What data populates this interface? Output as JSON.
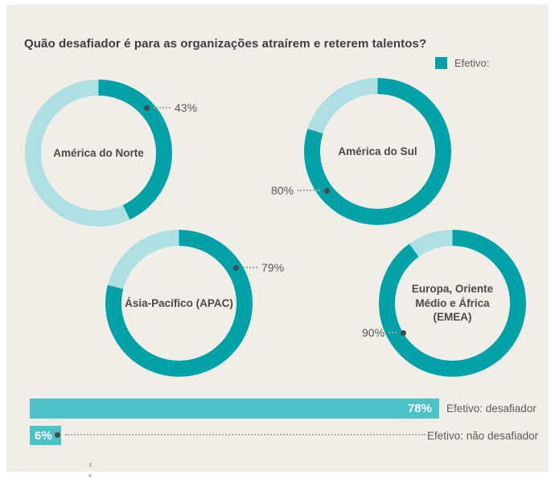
{
  "colors": {
    "active": "#00a2a8",
    "remainder": "#aedfe3",
    "bar": "#4cc3c8",
    "background": "#f1eee7",
    "title_text": "#3e3e3e",
    "label_text": "#4a4a4a"
  },
  "chart_data": [
    {
      "type": "pie",
      "subtype": "donut-grid",
      "title": "Quão desafiador é para as organizações atraírem e reterem talentos?",
      "legend": [
        "Efetivo:"
      ],
      "legend_position": "top-right",
      "donuts": [
        {
          "category": "América do Norte",
          "value": 43,
          "remainder": 57,
          "label": "43%"
        },
        {
          "category": "América do Sul",
          "value": 80,
          "remainder": 20,
          "label": "80%"
        },
        {
          "category": "Ásia-Pacífico (APAC)",
          "value": 79,
          "remainder": 21,
          "label": "79%"
        },
        {
          "category": "Europa, Oriente Médio e África (EMEA)",
          "value": 90,
          "remainder": 10,
          "label": "90%"
        }
      ]
    },
    {
      "type": "bar",
      "orientation": "horizontal",
      "categories": [
        "Efetivo: desafiador",
        "Efetivo: não desafiador"
      ],
      "values": [
        78,
        6
      ],
      "labels": [
        "78%",
        "6%"
      ],
      "xlim": [
        0,
        100
      ],
      "grid": false,
      "legend_position": "none"
    }
  ]
}
